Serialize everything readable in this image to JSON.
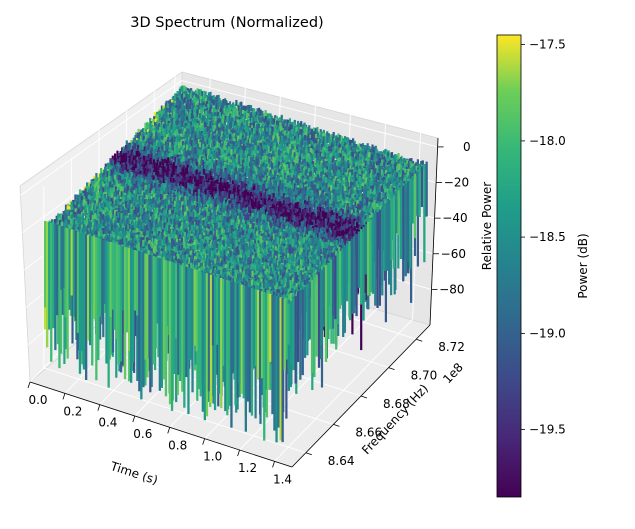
{
  "chart_data": {
    "type": "3d-surface",
    "title": "3D Spectrum (Normalized)",
    "xlabel": "Time (s)",
    "ylabel": "Frequency (Hz)",
    "ylabel_offset": "1e8",
    "zlabel": "Relative Power",
    "colorbar_label": "Power (dB)",
    "x_ticks": [
      "0.0",
      "0.2",
      "0.4",
      "0.6",
      "0.8",
      "1.0",
      "1.2",
      "1.4"
    ],
    "y_ticks": [
      "8.64",
      "8.66",
      "8.68",
      "8.70",
      "8.72"
    ],
    "z_ticks": [
      "0",
      "−20",
      "−40",
      "−60",
      "−80"
    ],
    "colorbar_ticks": [
      "−17.5",
      "−18.0",
      "−18.5",
      "−19.0",
      "−19.5"
    ],
    "colorbar_range": [
      -19.85,
      -17.45
    ],
    "xlim": [
      0,
      1.5
    ],
    "ylim": [
      863000000,
      873000000
    ],
    "zlim": [
      -100,
      5
    ],
    "colormap": "viridis",
    "grid": true
  }
}
